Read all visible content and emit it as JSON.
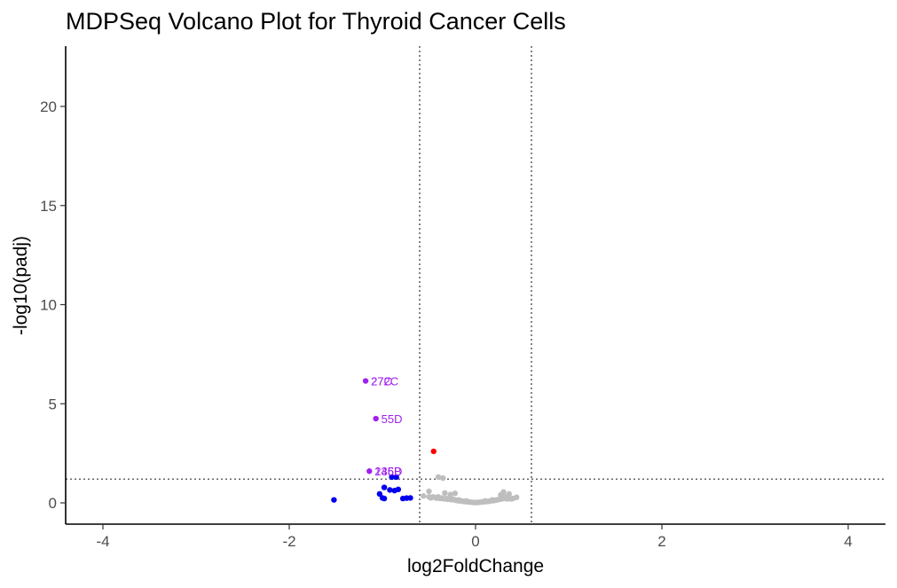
{
  "chart_data": {
    "type": "scatter",
    "title": "MDPSeq Volcano Plot for Thyroid Cancer Cells",
    "xlabel": "log2FoldChange",
    "ylabel": "-log10(padj)",
    "xlim": [
      -4.4,
      4.4
    ],
    "ylim": [
      -1.1,
      23.0
    ],
    "xticks": [
      -4,
      -2,
      0,
      2,
      4
    ],
    "xtick_labels": [
      "-4",
      "-2",
      "0",
      "2",
      "4"
    ],
    "yticks": [
      0,
      5,
      10,
      15,
      20
    ],
    "ytick_labels": [
      "0",
      "5",
      "10",
      "15",
      "20"
    ],
    "grid": false,
    "thresholds": {
      "log2fc": [
        -0.6,
        0.6
      ],
      "neg_log10_padj": 1.2
    },
    "colors": {
      "ns": "#bebebe",
      "down": "#0000ee",
      "up": "#ff0000",
      "labeled": "#a020f0",
      "threshold_line": "#333333"
    },
    "series": [
      {
        "group": "ns",
        "points": [
          [
            -0.56,
            0.35
          ],
          [
            -0.5,
            0.3
          ],
          [
            -0.48,
            0.25
          ],
          [
            -0.46,
            0.3
          ],
          [
            -0.44,
            0.28
          ],
          [
            -0.42,
            0.24
          ],
          [
            -0.4,
            0.3
          ],
          [
            -0.38,
            0.22
          ],
          [
            -0.36,
            0.24
          ],
          [
            -0.34,
            0.2
          ],
          [
            -0.32,
            0.22
          ],
          [
            -0.3,
            0.18
          ],
          [
            -0.28,
            0.2
          ],
          [
            -0.27,
            0.42
          ],
          [
            -0.26,
            0.16
          ],
          [
            -0.24,
            0.18
          ],
          [
            -0.22,
            0.48
          ],
          [
            -0.22,
            0.14
          ],
          [
            -0.2,
            0.12
          ],
          [
            -0.18,
            0.1
          ],
          [
            -0.16,
            0.11
          ],
          [
            -0.14,
            0.08
          ],
          [
            -0.12,
            0.07
          ],
          [
            -0.1,
            0.06
          ],
          [
            -0.08,
            0.05
          ],
          [
            -0.06,
            0.04
          ],
          [
            -0.04,
            0.03
          ],
          [
            -0.02,
            0.02
          ],
          [
            0.0,
            0.02
          ],
          [
            0.02,
            0.02
          ],
          [
            0.04,
            0.03
          ],
          [
            0.06,
            0.04
          ],
          [
            0.08,
            0.05
          ],
          [
            0.1,
            0.06
          ],
          [
            0.12,
            0.07
          ],
          [
            0.14,
            0.08
          ],
          [
            0.16,
            0.1
          ],
          [
            0.18,
            0.11
          ],
          [
            0.2,
            0.12
          ],
          [
            0.22,
            0.14
          ],
          [
            0.24,
            0.16
          ],
          [
            0.26,
            0.18
          ],
          [
            0.28,
            0.2
          ],
          [
            0.3,
            0.22
          ],
          [
            0.3,
            0.55
          ],
          [
            0.32,
            0.3
          ],
          [
            0.34,
            0.2
          ],
          [
            0.36,
            0.25
          ],
          [
            0.38,
            0.2
          ],
          [
            0.4,
            0.22
          ],
          [
            0.44,
            0.28
          ],
          [
            -0.4,
            1.3
          ],
          [
            -0.5,
            0.58
          ],
          [
            -0.33,
            0.5
          ],
          [
            -0.35,
            1.25
          ],
          [
            0.27,
            0.4
          ],
          [
            0.36,
            0.45
          ],
          [
            -0.1,
            0.1
          ],
          [
            0.1,
            0.1
          ],
          [
            -0.18,
            0.15
          ],
          [
            0.18,
            0.15
          ],
          [
            -0.28,
            0.26
          ],
          [
            0.28,
            0.26
          ]
        ]
      },
      {
        "group": "down",
        "points": [
          [
            -1.52,
            0.15
          ],
          [
            -1.03,
            0.45
          ],
          [
            -1.0,
            0.25
          ],
          [
            -0.98,
            0.22
          ],
          [
            -0.98,
            0.78
          ],
          [
            -0.92,
            0.65
          ],
          [
            -0.87,
            0.62
          ],
          [
            -0.83,
            0.68
          ],
          [
            -0.78,
            0.22
          ],
          [
            -0.74,
            0.24
          ],
          [
            -0.7,
            0.25
          ],
          [
            -0.9,
            1.3
          ],
          [
            -0.85,
            1.3
          ]
        ]
      },
      {
        "group": "up",
        "points": [
          [
            -0.45,
            2.6
          ]
        ]
      },
      {
        "group": "labeled",
        "points": [
          [
            -1.18,
            6.15
          ],
          [
            -1.07,
            4.25
          ],
          [
            -1.14,
            1.6
          ]
        ]
      }
    ],
    "gene_labels": [
      {
        "text": "272C",
        "x": -1.18,
        "y": 6.15
      },
      {
        "text": "27C",
        "x": -1.18,
        "y": 6.15
      },
      {
        "text": "55D",
        "x": -1.07,
        "y": 4.25
      },
      {
        "text": "135D",
        "x": -1.14,
        "y": 1.6
      },
      {
        "text": "246B",
        "x": -1.14,
        "y": 1.6
      }
    ]
  }
}
